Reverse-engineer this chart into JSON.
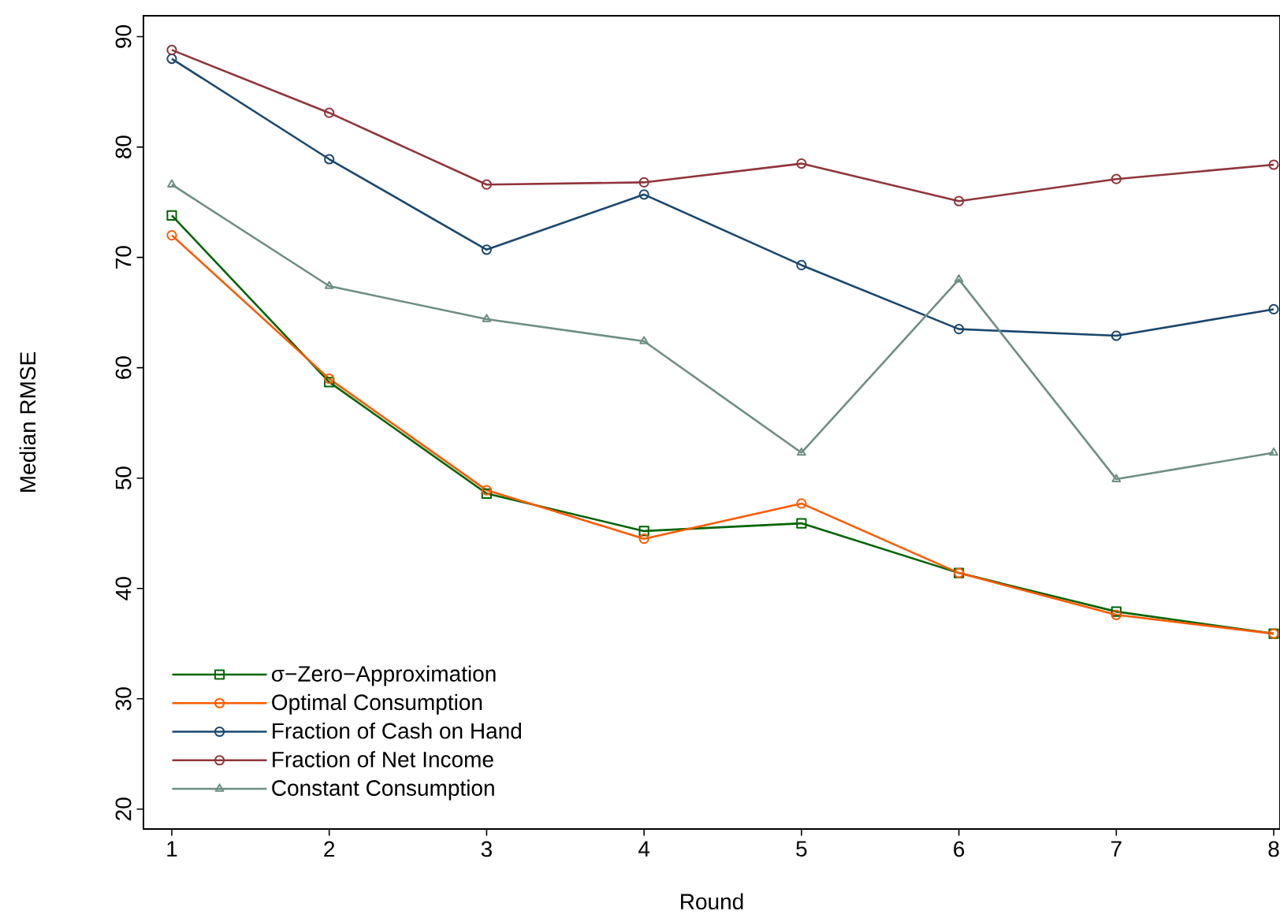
{
  "chart_data": {
    "type": "line",
    "xlabel": "Round",
    "ylabel": "Median RMSE",
    "x": [
      1,
      2,
      3,
      4,
      5,
      6,
      7,
      8
    ],
    "xlim": [
      0.82,
      8.04
    ],
    "xticks": [
      1,
      2,
      3,
      4,
      5,
      6,
      7,
      8
    ],
    "ylim": [
      18.2,
      91.9
    ],
    "yticks": [
      20,
      30,
      40,
      50,
      60,
      70,
      80,
      90
    ],
    "grid": false,
    "legend": "bottom left",
    "series": [
      {
        "name": "σ−Zero−Approximation",
        "color": "#006400",
        "marker": "square",
        "values": [
          73.8,
          58.7,
          48.6,
          45.2,
          45.9,
          41.4,
          37.9,
          35.9
        ]
      },
      {
        "name": "Optimal Consumption",
        "color": "#ff5a00",
        "marker": "circle",
        "values": [
          72.0,
          59.0,
          48.9,
          44.5,
          47.7,
          41.4,
          37.6,
          35.9
        ]
      },
      {
        "name": "Fraction of Cash on Hand",
        "color": "#1a476f",
        "marker": "circle",
        "values": [
          88.0,
          78.9,
          70.7,
          75.7,
          69.3,
          63.5,
          62.9,
          65.3
        ]
      },
      {
        "name": "Fraction of Net Income",
        "color": "#90353b",
        "marker": "circle",
        "values": [
          88.8,
          83.1,
          76.6,
          76.8,
          78.5,
          75.1,
          77.1,
          78.4
        ]
      },
      {
        "name": "Constant Consumption",
        "color": "#6e8e84",
        "marker": "triangle",
        "values": [
          76.6,
          67.4,
          64.4,
          62.4,
          52.3,
          68.0,
          49.9,
          52.3
        ]
      }
    ]
  }
}
